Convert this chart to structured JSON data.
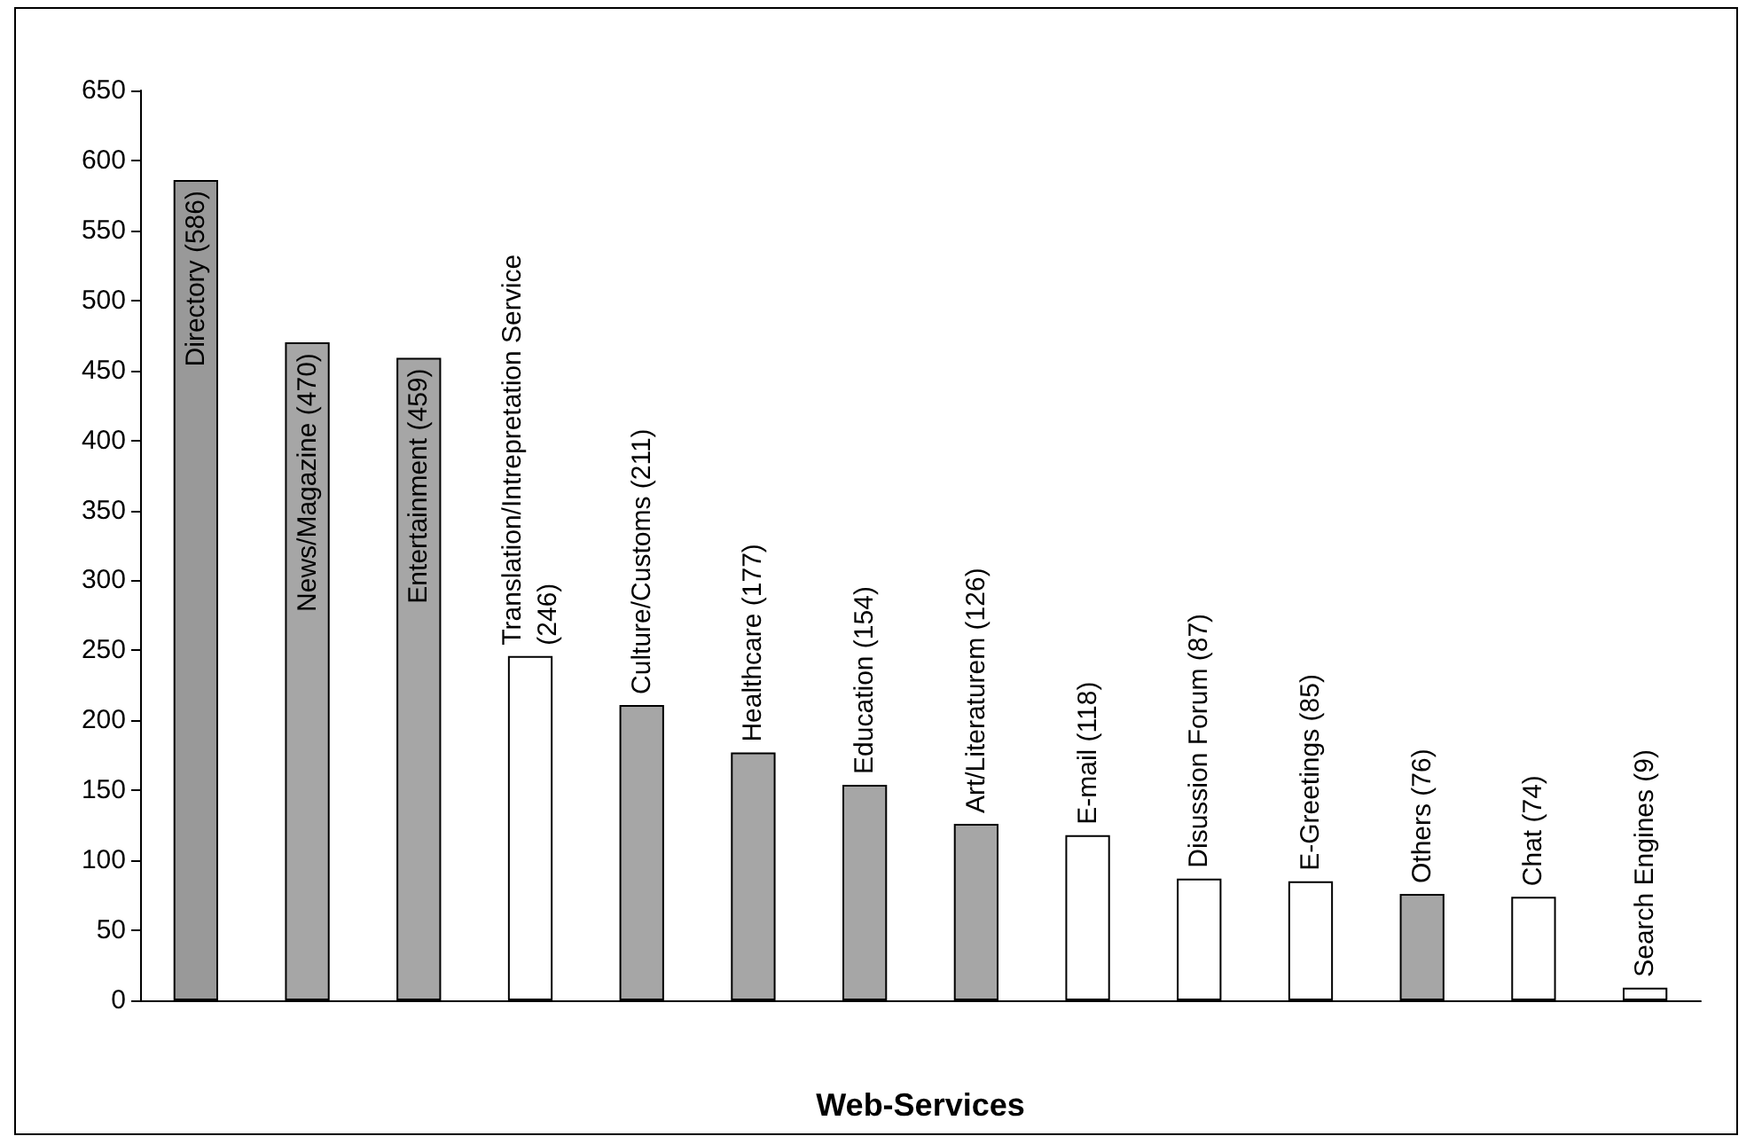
{
  "chart_data": {
    "type": "bar",
    "xlabel": "Web-Services",
    "categories": [
      null,
      null,
      null,
      null,
      null,
      null,
      null,
      null,
      null,
      null,
      null,
      null,
      null,
      null
    ],
    "values": [
      586,
      470,
      459,
      246,
      211,
      177,
      154,
      126,
      118,
      87,
      85,
      76,
      74,
      9
    ],
    "value_labels": [
      "Directory (586)",
      "News/Magazine (470)",
      "Entertainment (459)",
      "Translation/Intrepretation Service (246)",
      "Culture/Customs (211)",
      "Healthcare (177)",
      "Education (154)",
      "Art/Literaturem (126)",
      "E-mail (118)",
      "Disussion Forum (87)",
      "E-Greetings (85)",
      "Others (76)",
      "Chat (74)",
      "Search Engines (9)"
    ],
    "colors": [
      "#999999",
      "#a6a6a6",
      "#a6a6a6",
      "#ffffff",
      "#a6a6a6",
      "#a6a6a6",
      "#a6a6a6",
      "#a6a6a6",
      "#ffffff",
      "#ffffff",
      "#ffffff",
      "#a6a6a6",
      "#ffffff",
      "#ffffff"
    ],
    "ylim": [
      0,
      650
    ],
    "yticks": [
      0,
      50,
      100,
      150,
      200,
      250,
      300,
      350,
      400,
      450,
      500,
      550,
      600,
      650
    ],
    "grid": false
  }
}
